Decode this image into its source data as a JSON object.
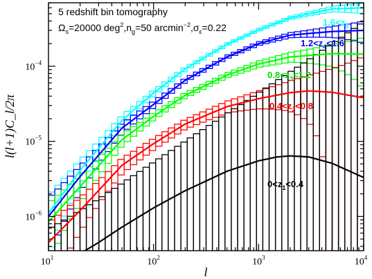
{
  "chart_data": {
    "type": "line",
    "xscale": "log",
    "yscale": "log",
    "xlim": [
      10,
      10000
    ],
    "ylim": [
      3.5e-07,
      0.0007
    ],
    "xlabel": "l",
    "ylabel": "l(l+1)C_l/2π",
    "x_ticks": [
      {
        "base": "10",
        "exp": "1"
      },
      {
        "base": "10",
        "exp": "2"
      },
      {
        "base": "10",
        "exp": "3"
      },
      {
        "base": "10",
        "exp": "4"
      }
    ],
    "y_ticks": [
      {
        "value": 1e-06,
        "base": "10",
        "exp": "−6"
      },
      {
        "value": 1e-05,
        "base": "10",
        "exp": "−5"
      },
      {
        "value": 0.0001,
        "base": "10",
        "exp": "−4"
      }
    ],
    "annotation_lines": [
      "5 redshift bin tomography",
      "Ω_s=20000 deg², n_g=50 arcmin⁻², σ_ε=0.22"
    ],
    "annotation_parts": {
      "title": "5 redshift bin tomography",
      "omega": "Ω",
      "omega_sub": "s",
      "omega_val": "=20000 deg",
      "deg_exp": "2",
      "ng": ",n",
      "ng_sub": "g",
      "ng_val": "=50 arcmin",
      "arcmin_exp": "−2",
      "sigma": ",σ",
      "sigma_sub": "ε",
      "sigma_val": "=0.22"
    },
    "series": [
      {
        "name": "1.6<z_5",
        "label_parts": [
          "1.6<z",
          "5",
          ""
        ],
        "color": "#00ffff",
        "points": [
          [
            10,
            1.1e-06
          ],
          [
            20,
            4.1e-06
          ],
          [
            50,
            1.9e-05
          ],
          [
            100,
            4.4e-05
          ],
          [
            200,
            9.2e-05
          ],
          [
            500,
            0.000196
          ],
          [
            1000,
            0.000305
          ],
          [
            2000,
            0.00044
          ],
          [
            5000,
            0.00058
          ],
          [
            10000,
            0.0006
          ]
        ]
      },
      {
        "name": "1.2<z_4<1.6",
        "label_parts": [
          "1.2<z",
          "4",
          "<1.6"
        ],
        "color": "#0000ff",
        "points": [
          [
            10,
            1e-06
          ],
          [
            20,
            3.4e-06
          ],
          [
            50,
            1.5e-05
          ],
          [
            100,
            3.1e-05
          ],
          [
            200,
            6.5e-05
          ],
          [
            500,
            0.000133
          ],
          [
            1000,
            0.0002
          ],
          [
            2000,
            0.00026
          ],
          [
            5000,
            0.00029
          ],
          [
            10000,
            0.0003
          ]
        ]
      },
      {
        "name": "0.8<z_3<1.2",
        "label_parts": [
          "0.8<z",
          "3",
          "<1.2"
        ],
        "color": "#00ff00",
        "points": [
          [
            10,
            8.5e-07
          ],
          [
            20,
            2.5e-06
          ],
          [
            50,
            1.05e-05
          ],
          [
            100,
            2.15e-05
          ],
          [
            200,
            4.1e-05
          ],
          [
            500,
            7.6e-05
          ],
          [
            1000,
            0.000107
          ],
          [
            2000,
            0.000133
          ],
          [
            5000,
            0.000147
          ],
          [
            10000,
            0.000145
          ]
        ]
      },
      {
        "name": "0.4<z_2<0.8",
        "label_parts": [
          "0.4<z",
          "2",
          "<0.8"
        ],
        "color": "#ff0000",
        "points": [
          [
            10,
            4.5e-07
          ],
          [
            20,
            1.2e-06
          ],
          [
            50,
            4.8e-06
          ],
          [
            100,
            9.3e-06
          ],
          [
            200,
            1.7e-05
          ],
          [
            500,
            2.9e-05
          ],
          [
            1000,
            3.7e-05
          ],
          [
            2000,
            4.45e-05
          ],
          [
            3000,
            4.7e-05
          ],
          [
            5000,
            4.5e-05
          ],
          [
            10000,
            3.8e-05
          ]
        ]
      },
      {
        "name": "0<z_1<0.4",
        "label_parts": [
          "0<z",
          "1",
          "<0.4"
        ],
        "color": "#000000",
        "points": [
          [
            20,
            3.2e-07
          ],
          [
            30,
            4.5e-07
          ],
          [
            50,
            7.2e-07
          ],
          [
            100,
            1.3e-06
          ],
          [
            200,
            2.2e-06
          ],
          [
            500,
            4e-06
          ],
          [
            1000,
            5.5e-06
          ],
          [
            1500,
            6.2e-06
          ],
          [
            2000,
            6.4e-06
          ],
          [
            3000,
            6.2e-06
          ],
          [
            5000,
            5.1e-06
          ],
          [
            10000,
            3.3e-06
          ]
        ]
      }
    ]
  }
}
